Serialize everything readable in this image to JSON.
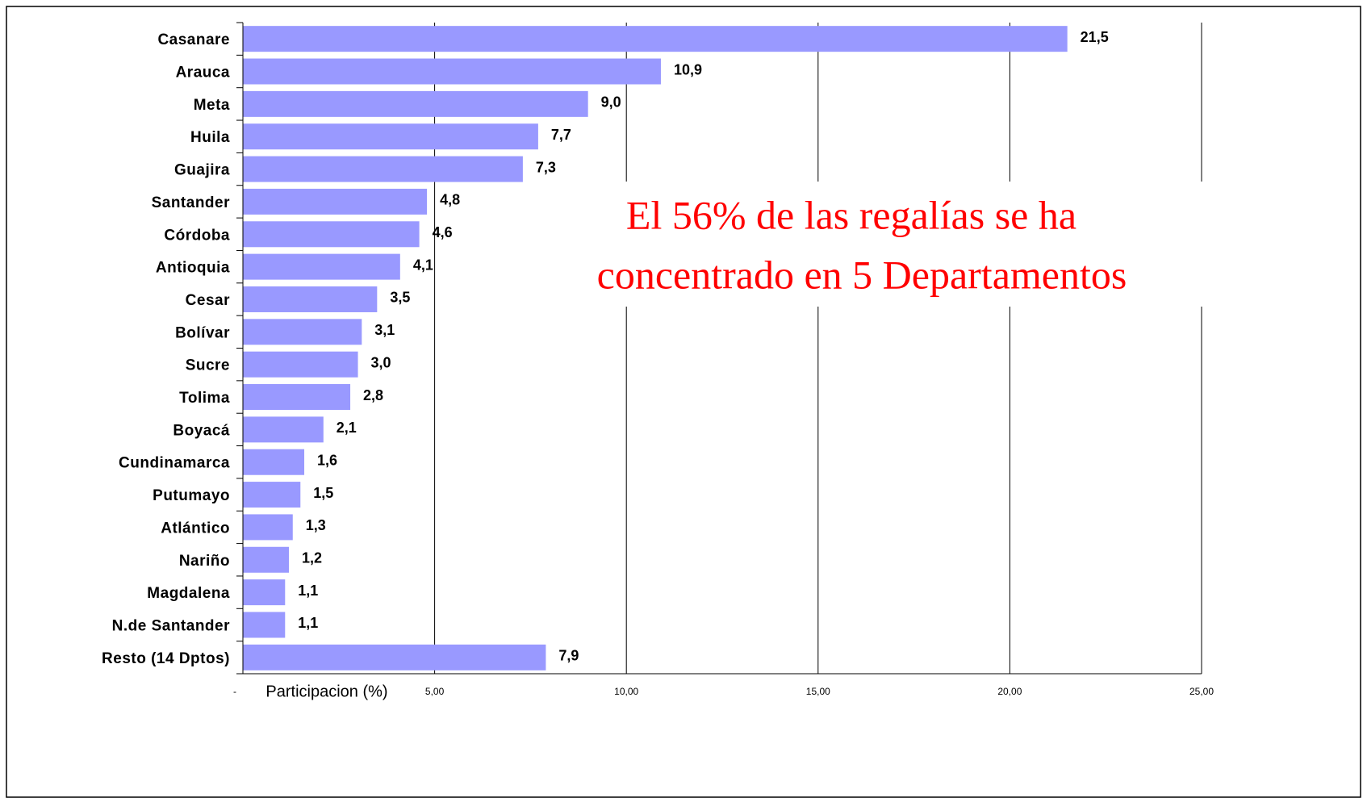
{
  "chart_data": {
    "type": "bar",
    "orientation": "horizontal",
    "x_label": "Participacion (%)",
    "annotations": [
      "El 56%  de las regalías se ha",
      "concentrado en 5 Departamentos"
    ],
    "categories": [
      "Casanare",
      "Arauca",
      "Meta",
      "Huila",
      "Guajira",
      "Santander",
      "Córdoba",
      "Antioquia",
      "Cesar",
      "Bolívar",
      "Sucre",
      "Tolima",
      "Boyacá",
      "Cundinamarca",
      "Putumayo",
      "Atlántico",
      "Nariño",
      "Magdalena",
      "N.de Santander",
      "Resto (14 Dptos)"
    ],
    "values": [
      21.5,
      10.9,
      9.0,
      7.7,
      7.3,
      4.8,
      4.6,
      4.1,
      3.5,
      3.1,
      3.0,
      2.8,
      2.1,
      1.6,
      1.5,
      1.3,
      1.2,
      1.1,
      1.1,
      7.9
    ],
    "value_labels": [
      "21,5",
      "10,9",
      "9,0",
      "7,7",
      "7,3",
      "4,8",
      "4,6",
      "4,1",
      "3,5",
      "3,1",
      "3,0",
      "2,8",
      "2,1",
      "1,6",
      "1,5",
      "1,3",
      "1,2",
      "1,1",
      "1,1",
      "7,9"
    ],
    "color": "#9999ff",
    "xlim": [
      0,
      25
    ],
    "xticks": [
      {
        "value": 0,
        "label": "-"
      },
      {
        "value": 5,
        "label": "5,00"
      },
      {
        "value": 10,
        "label": "10,00"
      },
      {
        "value": 15,
        "label": "15,00"
      },
      {
        "value": 20,
        "label": "20,00"
      },
      {
        "value": 25,
        "label": "25,00"
      }
    ],
    "grid": true
  }
}
